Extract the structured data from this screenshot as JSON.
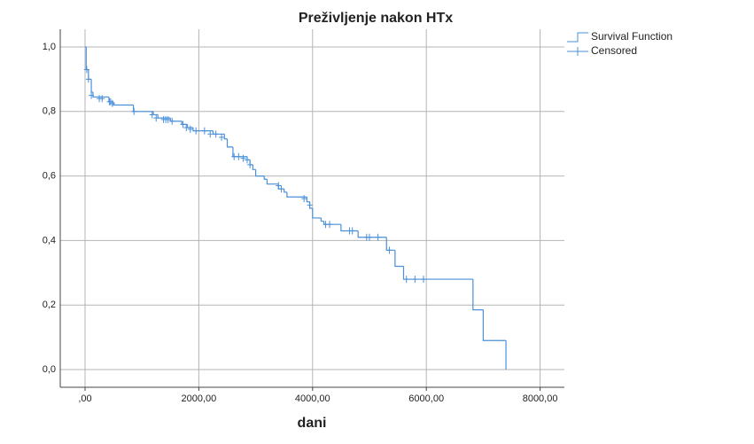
{
  "chart_data": {
    "type": "step",
    "title": "Preživljenje nakon HTx",
    "x_label": "dani",
    "xlim": [
      -436,
      8427
    ],
    "ylim": [
      -0.055,
      1.055
    ],
    "xticks": [
      {
        "value": 0,
        "label": ",00"
      },
      {
        "value": 2000,
        "label": "2000,00"
      },
      {
        "value": 4000,
        "label": "4000,00"
      },
      {
        "value": 6000,
        "label": "6000,00"
      },
      {
        "value": 8000,
        "label": "8000,00"
      }
    ],
    "yticks": [
      {
        "value": 0,
        "label": "0,0"
      },
      {
        "value": 0.2,
        "label": "0,2"
      },
      {
        "value": 0.4,
        "label": "0,4"
      },
      {
        "value": 0.6,
        "label": "0,6"
      },
      {
        "value": 0.8,
        "label": "0,8"
      },
      {
        "value": 1,
        "label": "1,0"
      }
    ],
    "grid": true,
    "legend": "top-right",
    "series": [
      {
        "name": "Survival Function",
        "color": "#4a90d9",
        "marker": "step",
        "x": [
          0,
          20,
          60,
          110,
          140,
          420,
          500,
          850,
          1200,
          1280,
          1500,
          1700,
          1800,
          1900,
          2250,
          2450,
          2500,
          2600,
          2850,
          2900,
          2950,
          3000,
          3150,
          3200,
          3400,
          3500,
          3550,
          3900,
          3950,
          4000,
          4150,
          4200,
          4500,
          4800,
          5300,
          5450,
          5600,
          6820,
          7000,
          7400
        ],
        "values": [
          1.0,
          0.93,
          0.9,
          0.86,
          0.845,
          0.83,
          0.82,
          0.8,
          0.79,
          0.78,
          0.77,
          0.76,
          0.75,
          0.74,
          0.73,
          0.715,
          0.69,
          0.66,
          0.65,
          0.635,
          0.62,
          0.6,
          0.59,
          0.575,
          0.56,
          0.55,
          0.535,
          0.52,
          0.5,
          0.47,
          0.46,
          0.45,
          0.43,
          0.41,
          0.37,
          0.32,
          0.28,
          0.185,
          0.09,
          0.0
        ]
      },
      {
        "name": "Censored",
        "color": "#4a90d9",
        "marker": "plus",
        "x": [
          30,
          60,
          110,
          250,
          300,
          430,
          450,
          480,
          860,
          1180,
          1250,
          1380,
          1420,
          1460,
          1530,
          1720,
          1780,
          1850,
          1950,
          2100,
          2200,
          2300,
          2400,
          2620,
          2700,
          2780,
          2850,
          2900,
          3400,
          3450,
          3850,
          3950,
          4230,
          4300,
          4650,
          4700,
          4950,
          5000,
          5150,
          5350,
          5650,
          5800,
          5950
        ],
        "values": [
          0.93,
          0.9,
          0.85,
          0.84,
          0.84,
          0.83,
          0.83,
          0.825,
          0.8,
          0.79,
          0.78,
          0.775,
          0.775,
          0.775,
          0.77,
          0.76,
          0.75,
          0.745,
          0.74,
          0.74,
          0.73,
          0.73,
          0.72,
          0.66,
          0.66,
          0.655,
          0.65,
          0.635,
          0.57,
          0.56,
          0.53,
          0.51,
          0.45,
          0.45,
          0.43,
          0.43,
          0.41,
          0.41,
          0.41,
          0.37,
          0.28,
          0.28,
          0.28
        ]
      }
    ]
  }
}
